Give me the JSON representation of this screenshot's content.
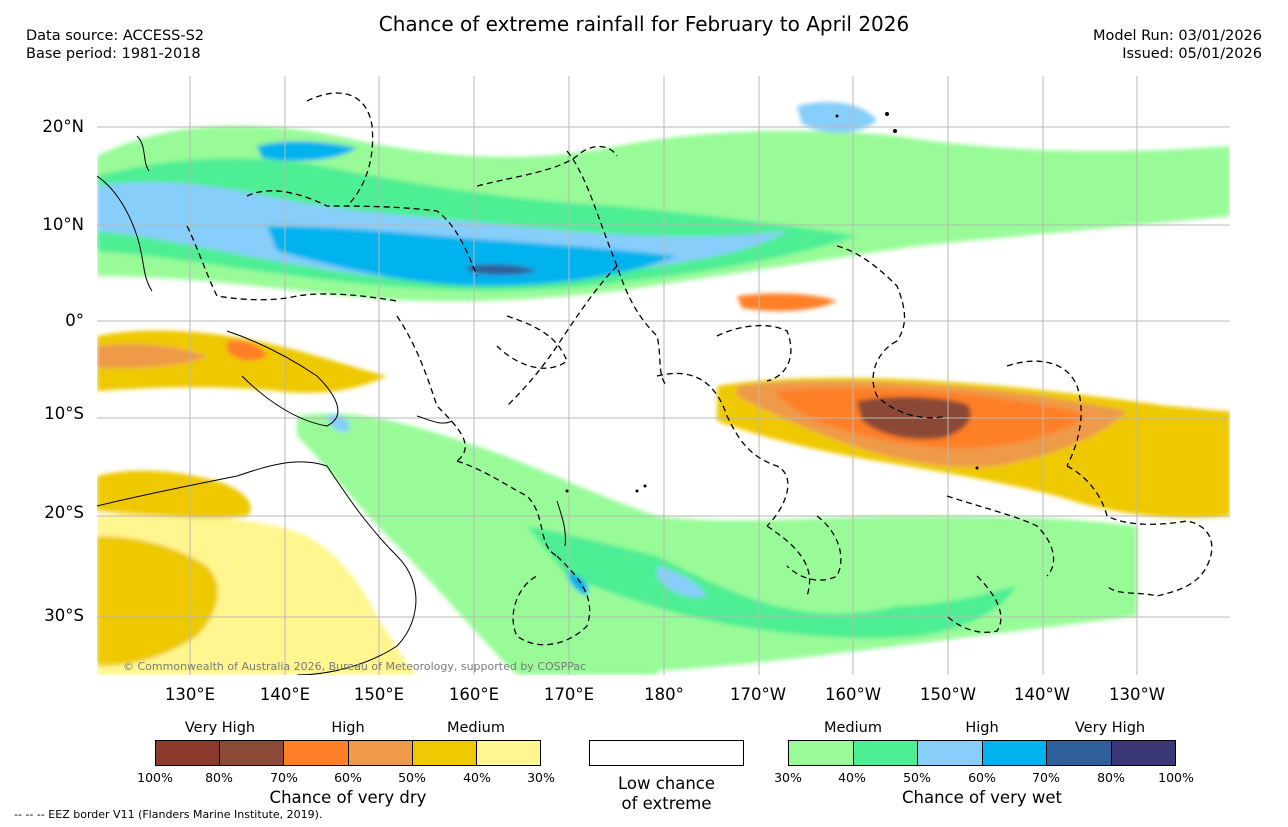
{
  "header": {
    "title": "Chance of extreme rainfall for February to April 2026",
    "data_source": "Data source: ACCESS-S2",
    "base_period": "Base period: 1981-2018",
    "model_run": "Model Run: 03/01/2026",
    "issued": "Issued: 05/01/2026"
  },
  "map": {
    "lat_labels": [
      "20°N",
      "10°N",
      "0°",
      "10°S",
      "20°S",
      "30°S"
    ],
    "lon_labels": [
      "130°E",
      "140°E",
      "150°E",
      "160°E",
      "170°E",
      "180°",
      "170°W",
      "160°W",
      "150°W",
      "140°W",
      "130°W"
    ],
    "credit": "© Commonwealth of Australia 2026, Bureau of Meteorology, supported by COSPPac"
  },
  "legend": {
    "dry": {
      "categories": [
        "Very High",
        "High",
        "Medium"
      ],
      "colors": [
        "#8b3a2b",
        "#8b4a35",
        "#ff7f27",
        "#ee9a4a",
        "#eec900",
        "#fff68f"
      ],
      "ticks": [
        "100%",
        "80%",
        "70%",
        "60%",
        "50%",
        "40%",
        "30%"
      ],
      "caption": "Chance of very dry"
    },
    "low": {
      "caption_line1": "Low chance",
      "caption_line2": "of extreme",
      "color": "#ffffff"
    },
    "wet": {
      "categories": [
        "Medium",
        "High",
        "Very High"
      ],
      "colors": [
        "#98fb98",
        "#4eee94",
        "#87cefa",
        "#00b2ee",
        "#2f5f9a",
        "#3c3878"
      ],
      "ticks": [
        "30%",
        "40%",
        "50%",
        "60%",
        "70%",
        "80%",
        "100%"
      ],
      "caption": "Chance of very wet"
    }
  },
  "footnote": "-- -- -- EEZ border V11 (Flanders Marine Institute, 2019)."
}
